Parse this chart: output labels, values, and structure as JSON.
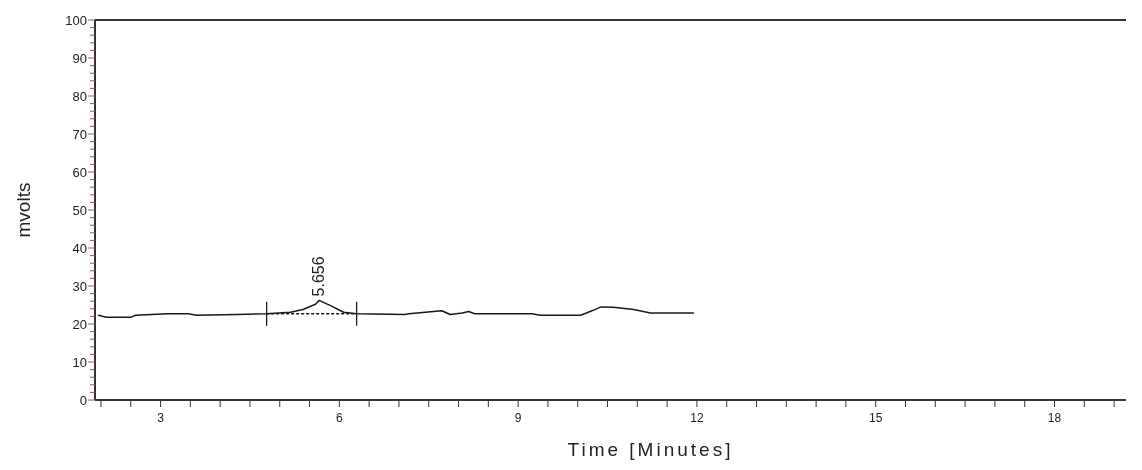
{
  "chart_data": {
    "type": "line",
    "xlabel": "Time   [Minutes]",
    "ylabel": "mvolts",
    "xlim": [
      1.9,
      19.2
    ],
    "ylim": [
      0,
      100
    ],
    "xticks": [
      {
        "value": 2,
        "label": null
      },
      {
        "value": 2.5,
        "label": null
      },
      3,
      {
        "value": 3.5,
        "label": null
      },
      {
        "value": 4,
        "label": null
      },
      {
        "value": 4.5,
        "label": null
      },
      {
        "value": 5,
        "label": null
      },
      {
        "value": 5.5,
        "label": null
      },
      6,
      {
        "value": 6.5,
        "label": null
      },
      {
        "value": 7,
        "label": null
      },
      {
        "value": 7.5,
        "label": null
      },
      {
        "value": 8,
        "label": null
      },
      {
        "value": 8.5,
        "label": null
      },
      9,
      {
        "value": 9.5,
        "label": null
      },
      {
        "value": 10,
        "label": null
      },
      {
        "value": 10.5,
        "label": null
      },
      {
        "value": 11,
        "label": null
      },
      {
        "value": 11.5,
        "label": null
      },
      12,
      {
        "value": 12.5,
        "label": null
      },
      {
        "value": 13,
        "label": null
      },
      {
        "value": 13.5,
        "label": null
      },
      {
        "value": 14,
        "label": null
      },
      {
        "value": 14.5,
        "label": null
      },
      15,
      {
        "value": 15.5,
        "label": null
      },
      {
        "value": 16,
        "label": null
      },
      {
        "value": 16.5,
        "label": null
      },
      {
        "value": 17,
        "label": null
      },
      {
        "value": 17.5,
        "label": null
      },
      18,
      {
        "value": 18.5,
        "label": null
      },
      {
        "value": 19,
        "label": null
      }
    ],
    "yticks": [
      0,
      {
        "value": 2,
        "label": null
      },
      {
        "value": 4,
        "label": null
      },
      {
        "value": 6,
        "label": null
      },
      {
        "value": 8,
        "label": null
      },
      10,
      {
        "value": 12,
        "label": null
      },
      {
        "value": 14,
        "label": null
      },
      {
        "value": 16,
        "label": null
      },
      {
        "value": 18,
        "label": null
      },
      20,
      {
        "value": 22,
        "label": null
      },
      {
        "value": 24,
        "label": null
      },
      {
        "value": 26,
        "label": null
      },
      {
        "value": 28,
        "label": null
      },
      30,
      {
        "value": 32,
        "label": null
      },
      {
        "value": 34,
        "label": null
      },
      {
        "value": 36,
        "label": null
      },
      {
        "value": 38,
        "label": null
      },
      40,
      {
        "value": 42,
        "label": null
      },
      {
        "value": 44,
        "label": null
      },
      {
        "value": 46,
        "label": null
      },
      {
        "value": 48,
        "label": null
      },
      50,
      {
        "value": 52,
        "label": null
      },
      {
        "value": 54,
        "label": null
      },
      {
        "value": 56,
        "label": null
      },
      {
        "value": 58,
        "label": null
      },
      60,
      {
        "value": 62,
        "label": null
      },
      {
        "value": 64,
        "label": null
      },
      {
        "value": 66,
        "label": null
      },
      {
        "value": 68,
        "label": null
      },
      70,
      {
        "value": 72,
        "label": null
      },
      {
        "value": 74,
        "label": null
      },
      {
        "value": 76,
        "label": null
      },
      {
        "value": 78,
        "label": null
      },
      80,
      {
        "value": 82,
        "label": null
      },
      {
        "value": 84,
        "label": null
      },
      {
        "value": 86,
        "label": null
      },
      {
        "value": 88,
        "label": null
      },
      90,
      {
        "value": 92,
        "label": null
      },
      {
        "value": 94,
        "label": null
      },
      {
        "value": 96,
        "label": null
      },
      {
        "value": 98,
        "label": null
      },
      100
    ],
    "grid": false,
    "marker": "none",
    "series": [
      {
        "color": "#1a1a1a",
        "line_style": "solid",
        "x": [
          1.96,
          2.09,
          2.51,
          2.58,
          3.12,
          3.47,
          3.6,
          4.29,
          4.78,
          5.18,
          5.39,
          5.6,
          5.66,
          5.87,
          6.07,
          6.29,
          7.1,
          7.17,
          7.58,
          7.72,
          7.86,
          8.06,
          8.17,
          8.27,
          9.23,
          9.37,
          10.05,
          10.26,
          10.39,
          10.6,
          10.94,
          11.22,
          11.94
        ],
        "values": [
          22.3,
          21.8,
          21.8,
          22.3,
          22.7,
          22.7,
          22.3,
          22.5,
          22.7,
          23.1,
          23.8,
          25.2,
          26.2,
          24.7,
          23.1,
          22.7,
          22.5,
          22.7,
          23.3,
          23.5,
          22.5,
          22.9,
          23.3,
          22.7,
          22.7,
          22.3,
          22.3,
          23.6,
          24.5,
          24.4,
          23.8,
          22.9,
          22.9
        ]
      },
      {
        "color": "#1a1a1a",
        "line_style": "dotted",
        "x": [
          4.78,
          6.29
        ],
        "values": [
          22.7,
          22.7
        ]
      }
    ],
    "annotations": [
      {
        "text": "5.656",
        "x": 5.656,
        "y": 26.2
      }
    ]
  }
}
